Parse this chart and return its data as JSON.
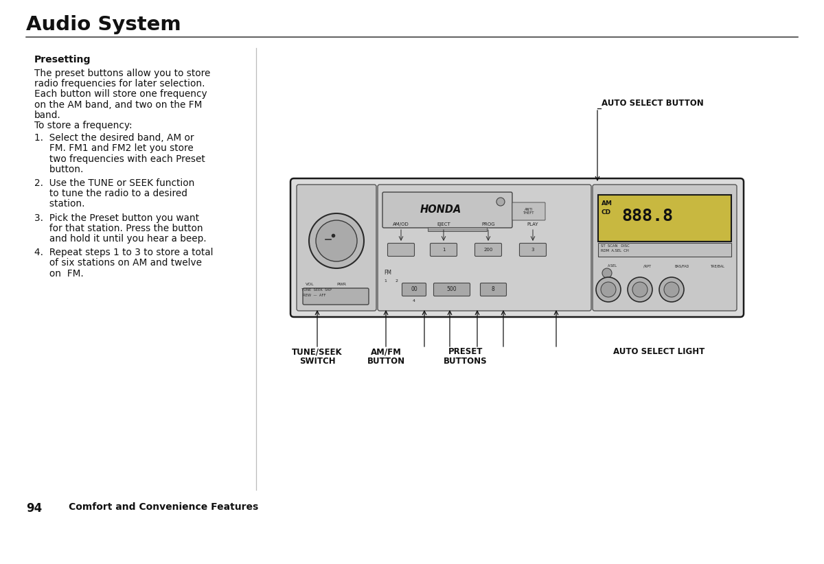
{
  "bg_color": "#ffffff",
  "title": "Audio System",
  "title_fontsize": 21,
  "section_title": "Presetting",
  "body_fontsize": 9.8,
  "label_fontsize": 8.5,
  "body_lines": [
    "The preset buttons allow you to store",
    "radio frequencies for later selection.",
    "Each button will store one frequency",
    "on the AM band, and two on the FM",
    "band.",
    "To store a frequency:"
  ],
  "num_items": [
    [
      "1.  Select the desired band, AM or",
      "     FM. FM1 and FM2 let you store",
      "     two frequencies with each Preset",
      "     button."
    ],
    [
      "2.  Use the TUNE or SEEK function",
      "     to tune the radio to a desired",
      "     station."
    ],
    [
      "3.  Pick the Preset button you want",
      "     for that station. Press the button",
      "     and hold it until you hear a beep."
    ],
    [
      "4.  Repeat steps 1 to 3 to store a total",
      "     of six stations on AM and twelve",
      "     on  FM."
    ]
  ],
  "footer_page": "94",
  "footer_caption": "Comfort and Convenience Features"
}
